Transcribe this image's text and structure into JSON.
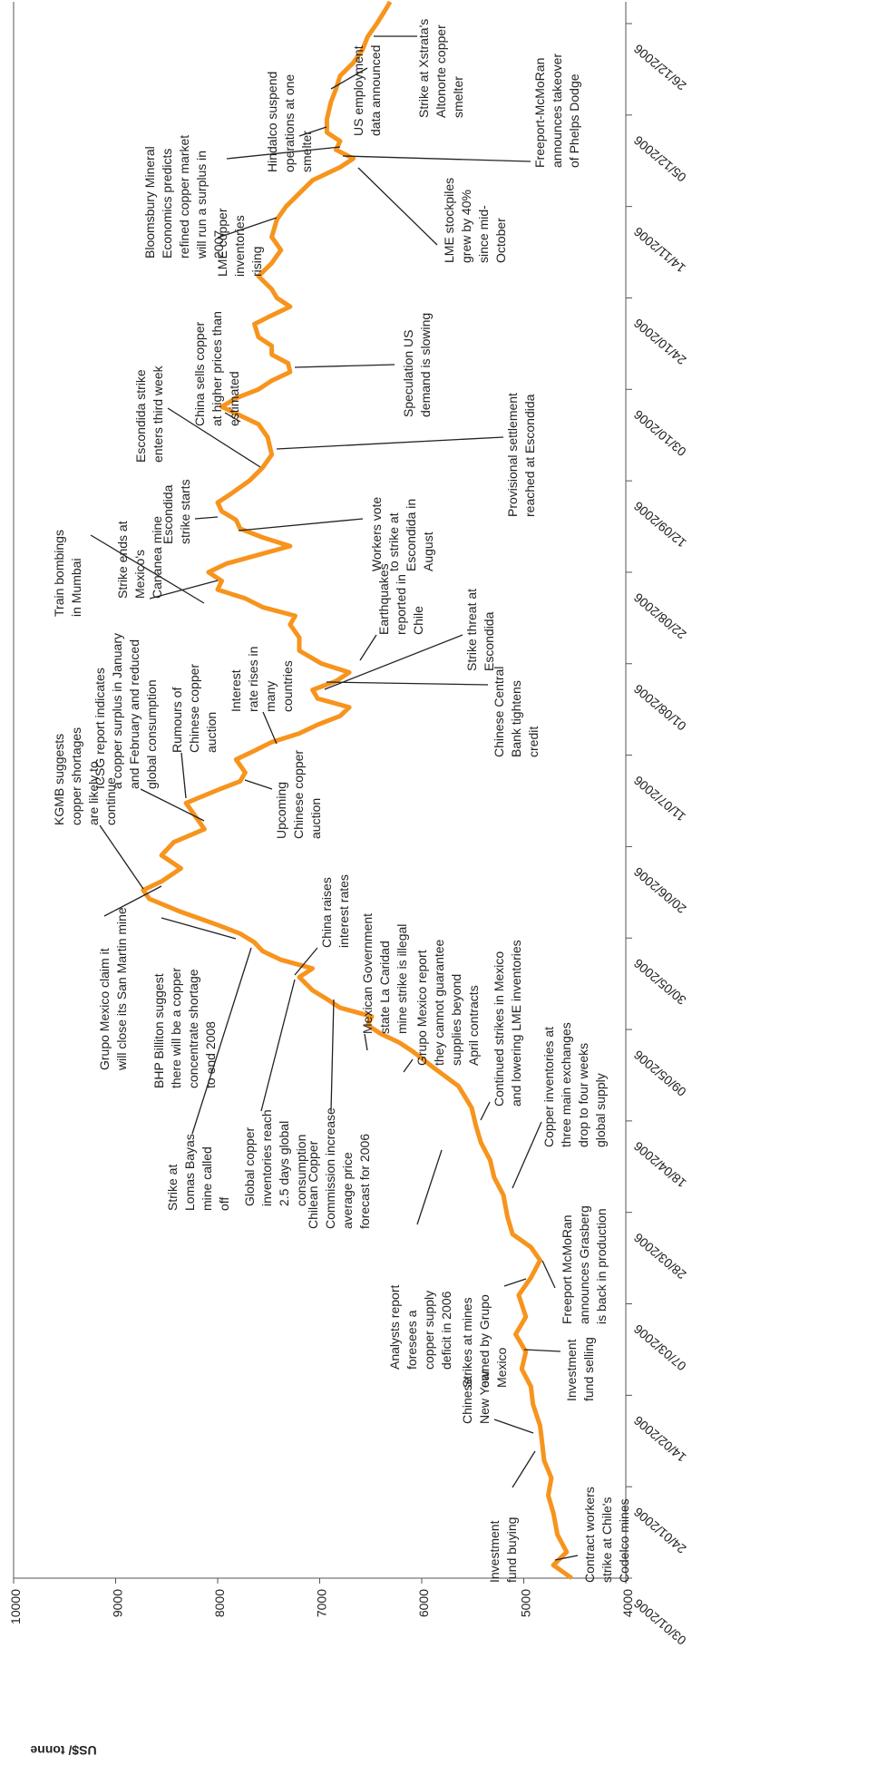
{
  "chart_data": {
    "type": "line",
    "y_label": "US$/ tonne",
    "color": "#f7941d",
    "xlim": [
      "03/01/2006",
      "31/12/2006"
    ],
    "xticks": [
      "03/01/2006",
      "24/01/2006",
      "14/02/2006",
      "07/03/2006",
      "28/03/2006",
      "18/04/2006",
      "09/05/2006",
      "30/05/2006",
      "20/06/2006",
      "11/07/2006",
      "01/08/2006",
      "22/08/2006",
      "12/09/2006",
      "03/10/2006",
      "24/10/2006",
      "14/11/2006",
      "05/12/2006",
      "26/12/2006"
    ],
    "ylim": [
      4000,
      10000
    ],
    "yticks": [
      4000,
      5000,
      6000,
      7000,
      8000,
      9000,
      10000
    ],
    "x": [
      "03/01/2006",
      "06/01/2006",
      "09/01/2006",
      "13/01/2006",
      "18/01/2006",
      "22/01/2006",
      "26/01/2006",
      "30/01/2006",
      "03/02/2006",
      "07/02/2006",
      "12/02/2006",
      "16/02/2006",
      "20/02/2006",
      "24/02/2006",
      "28/02/2006",
      "04/03/2006",
      "09/03/2006",
      "13/03/2006",
      "17/03/2006",
      "20/03/2006",
      "23/03/2006",
      "27/03/2006",
      "01/04/2006",
      "05/04/2006",
      "09/04/2006",
      "13/04/2006",
      "17/04/2006",
      "21/04/2006",
      "26/04/2006",
      "30/04/2006",
      "04/05/2006",
      "06/05/2006",
      "08/05/2006",
      "10/05/2006",
      "12/05/2006",
      "14/05/2006",
      "16/05/2006",
      "18/05/2006",
      "21/05/2006",
      "23/05/2006",
      "25/05/2006",
      "27/05/2006",
      "29/05/2006",
      "31/05/2006",
      "02/06/2006",
      "05/06/2006",
      "08/06/2006",
      "10/06/2006",
      "12/06/2006",
      "15/06/2006",
      "18/06/2006",
      "21/06/2006",
      "24/06/2006",
      "27/06/2006",
      "30/06/2006",
      "03/07/2006",
      "05/07/2006",
      "07/07/2006",
      "10/07/2006",
      "12/07/2006",
      "14/07/2006",
      "16/07/2006",
      "18/07/2006",
      "20/07/2006",
      "22/07/2006",
      "24/07/2006",
      "26/07/2006",
      "28/07/2006",
      "30/07/2006",
      "01/08/2006",
      "04/08/2006",
      "07/08/2006",
      "10/08/2006",
      "12/08/2006",
      "14/08/2006",
      "16/08/2006",
      "18/08/2006",
      "20/08/2006",
      "22/08/2006",
      "24/08/2006",
      "28/08/2006",
      "30/08/2006",
      "01/09/2006",
      "03/09/2006",
      "05/09/2006",
      "07/09/2006",
      "09/09/2006",
      "12/09/2006",
      "15/09/2006",
      "18/09/2006",
      "22/09/2006",
      "25/09/2006",
      "27/09/2006",
      "29/09/2006",
      "01/10/2006",
      "03/10/2006",
      "05/10/2006",
      "07/10/2006",
      "09/10/2006",
      "11/10/2006",
      "13/10/2006",
      "15/10/2006",
      "18/10/2006",
      "20/10/2006",
      "22/10/2006",
      "24/10/2006",
      "26/10/2006",
      "29/10/2006",
      "01/11/2006",
      "04/11/2006",
      "07/11/2006",
      "11/11/2006",
      "14/11/2006",
      "17/11/2006",
      "20/11/2006",
      "23/11/2006",
      "25/11/2006",
      "27/11/2006",
      "29/11/2006",
      "01/12/2006",
      "04/12/2006",
      "08/12/2006",
      "11/12/2006",
      "14/12/2006",
      "17/12/2006",
      "20/12/2006",
      "23/12/2006",
      "26/12/2006",
      "29/12/2006",
      "31/12/2006"
    ],
    "values": [
      4530,
      4710,
      4580,
      4670,
      4710,
      4760,
      4730,
      4800,
      4820,
      4840,
      4910,
      4930,
      5020,
      4980,
      5080,
      4980,
      5050,
      4930,
      4840,
      4930,
      5110,
      5160,
      5200,
      5290,
      5330,
      5420,
      5470,
      5510,
      5640,
      5870,
      6090,
      6220,
      6400,
      6530,
      6490,
      6800,
      6930,
      7070,
      7200,
      7070,
      7380,
      7560,
      7640,
      7780,
      8000,
      8360,
      8670,
      8730,
      8550,
      8360,
      8550,
      8430,
      8130,
      8220,
      8310,
      8000,
      7780,
      7730,
      7820,
      7640,
      7470,
      7200,
      7020,
      6800,
      6710,
      7020,
      7070,
      6840,
      6710,
      6980,
      7200,
      7200,
      7290,
      7240,
      7560,
      7730,
      8000,
      7960,
      8090,
      7910,
      7290,
      7560,
      7780,
      7820,
      7960,
      8000,
      7870,
      7690,
      7560,
      7470,
      7510,
      7600,
      7780,
      7960,
      7820,
      7600,
      7470,
      7290,
      7310,
      7470,
      7470,
      7600,
      7640,
      7470,
      7290,
      7420,
      7470,
      7600,
      7470,
      7380,
      7470,
      7420,
      7330,
      7200,
      7070,
      6800,
      6670,
      6840,
      6800,
      6930,
      6930,
      6890,
      6840,
      6800,
      6670,
      6580,
      6530,
      6440,
      6360,
      6310
    ],
    "annotations": [
      {
        "text": [
          "Contract workers",
          "strike at Chile's",
          "Codelco mines"
        ]
      },
      {
        "text": [
          "Investment",
          "fund buying"
        ]
      },
      {
        "text": [
          "Chinese",
          "New Year"
        ]
      },
      {
        "text": [
          "Investment",
          "fund selling"
        ]
      },
      {
        "text": [
          "Strikes at mines",
          "owned by Grupo",
          "Mexico"
        ]
      },
      {
        "text": [
          "Analysts report",
          "foresees a",
          "copper supply",
          "deficit in 2006"
        ]
      },
      {
        "text": [
          "Freeport McMoRan",
          "announces Grasberg",
          "is back in production"
        ]
      },
      {
        "text": [
          "Copper inventories at",
          "three main exchanges",
          "drop to four weeks",
          "global supply"
        ]
      },
      {
        "text": [
          "Continued strikes in Mexico",
          "and lowering LME inventories"
        ]
      },
      {
        "text": [
          "Grupo Mexico report",
          "they cannot guarantee",
          "supplies beyond",
          "April contracts"
        ]
      },
      {
        "text": [
          "Mexican Government",
          "state La Caridad",
          "mine strike is illegal"
        ]
      },
      {
        "text": [
          "China raises",
          "interest rates"
        ]
      },
      {
        "text": [
          "Chilean Copper",
          "Commission increase",
          "average price",
          "forecast for 2006"
        ]
      },
      {
        "text": [
          "Global copper",
          "inventories reach",
          "2.5 days global",
          "consumption"
        ]
      },
      {
        "text": [
          "Upcoming",
          "Chinese copper",
          "auction"
        ]
      },
      {
        "text": [
          "Strike at",
          "Lomas Bayas",
          "mine called",
          "off"
        ]
      },
      {
        "text": [
          "BHP Billiton suggest",
          "there will be a copper",
          "concentrate shortage",
          "to end 2008"
        ]
      },
      {
        "text": [
          "Grupo Mexico claim it",
          "will close its San Martin mine"
        ]
      },
      {
        "text": [
          "KGMB suggests",
          "copper shortages",
          "are likely to",
          "continue"
        ]
      },
      {
        "text": [
          "ICSG report indicates",
          "a copper surplus in January",
          "and February and reduced",
          "global consumption"
        ]
      },
      {
        "text": [
          "Rumours of",
          "Chinese copper",
          "auction"
        ]
      },
      {
        "text": [
          "Interest",
          "rate rises in",
          "many",
          "countries"
        ]
      },
      {
        "text": [
          "Chinese Central",
          "Bank tightens",
          "credit"
        ]
      },
      {
        "text": [
          "Strike threat at",
          "Escondida"
        ]
      },
      {
        "text": [
          "Earthquakes",
          "reported in",
          "Chile"
        ]
      },
      {
        "text": [
          "Train bombings",
          "in Mumbai"
        ]
      },
      {
        "text": [
          "Strike ends at",
          "Mexico's",
          "Cananea mine"
        ]
      },
      {
        "text": [
          "Escondida",
          "strike starts"
        ]
      },
      {
        "text": [
          "Workers vote",
          "to strike at",
          "Escondida in",
          "August"
        ]
      },
      {
        "text": [
          "Provisional settlement",
          "reached at Escondida"
        ]
      },
      {
        "text": [
          "Escondida strike",
          "enters  third week"
        ]
      },
      {
        "text": [
          "China sells copper",
          "at higher prices than",
          "estimated"
        ]
      },
      {
        "text": [
          "Speculation US",
          "demand is slowing"
        ]
      },
      {
        "text": [
          "LME copper",
          "inventories",
          "rising"
        ]
      },
      {
        "text": [
          "LME stockpiles",
          "grew by 40%",
          "since mid-",
          "October"
        ]
      },
      {
        "text": [
          "Freeport-McMoRan",
          "announces takeover",
          "of Phelps Dodge"
        ]
      },
      {
        "text": [
          "Bloomsbury Mineral",
          "Economics predicts",
          "refined copper market",
          "will run a surplus in",
          "2007"
        ]
      },
      {
        "text": [
          "Hindalco suspend",
          "operations at one",
          "smelter"
        ]
      },
      {
        "text": [
          "US employment",
          "data announced"
        ]
      },
      {
        "text": [
          "Strike at Xstrata's",
          "Altonorte copper",
          "smelter"
        ]
      }
    ]
  }
}
